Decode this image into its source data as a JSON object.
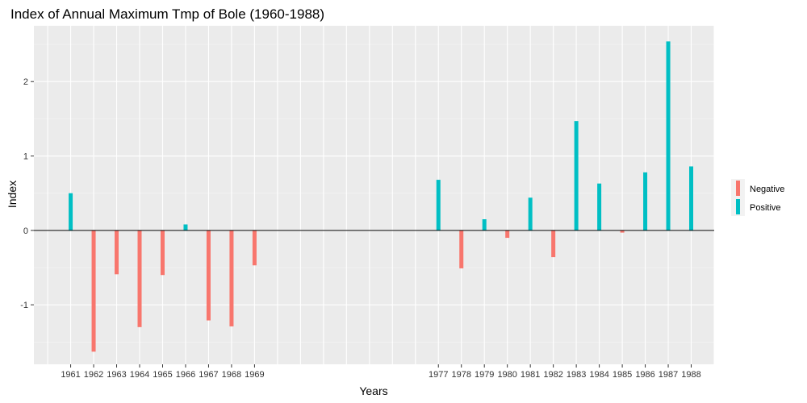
{
  "chart_data": {
    "type": "bar",
    "title": "Index of Annual Maximum Tmp of Bole (1960-1988)",
    "xlabel": "Years",
    "ylabel": "Index",
    "xlim": [
      1959.4,
      1989.0
    ],
    "ylim": [
      -1.8,
      2.75
    ],
    "y_ticks": [
      -1,
      0,
      1,
      2
    ],
    "x_ticks": [
      1961,
      1962,
      1963,
      1964,
      1965,
      1966,
      1967,
      1968,
      1969,
      1977,
      1978,
      1979,
      1980,
      1981,
      1982,
      1983,
      1984,
      1985,
      1986,
      1987,
      1988
    ],
    "categories": [
      "1961",
      "1962",
      "1963",
      "1964",
      "1965",
      "1966",
      "1967",
      "1968",
      "1969",
      "1977",
      "1978",
      "1979",
      "1980",
      "1981",
      "1982",
      "1983",
      "1984",
      "1985",
      "1986",
      "1987",
      "1988"
    ],
    "values": [
      0.5,
      -1.63,
      -0.59,
      -1.3,
      -0.6,
      0.08,
      -1.21,
      -1.29,
      -0.47,
      0.68,
      -0.51,
      0.15,
      -0.1,
      0.44,
      -0.36,
      1.47,
      0.63,
      -0.03,
      0.78,
      2.54,
      0.86
    ],
    "legend": {
      "position": "right",
      "entries": [
        {
          "label": "Negative",
          "color": "#F8766D"
        },
        {
          "label": "Positive",
          "color": "#00BFC4"
        }
      ]
    },
    "grid": true,
    "zero_line": true
  }
}
